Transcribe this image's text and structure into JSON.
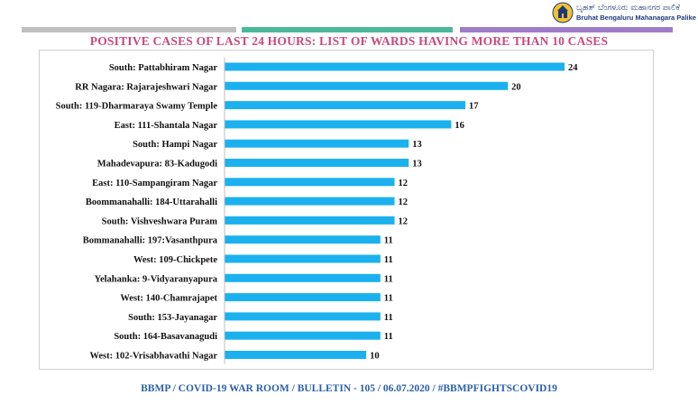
{
  "logo": {
    "kannada_text": "ಬೃಹತ್ ಬೆಂಗಳೂರು ಮಹಾನಗರ ಪಾಲಿಕೆ",
    "english_text": "Bruhat Bengaluru Mahanagara Palike"
  },
  "footer": "BBMP / COVID-19 WAR ROOM / BULLETIN - 105 / 06.07.2020 / #BBMPFIGHTSCOVID19",
  "colors": {
    "bar": "#1ab1ee",
    "title": "#c8497e",
    "footer": "#2a5fa8"
  },
  "chart_data": {
    "type": "bar",
    "orientation": "horizontal",
    "title": "POSITIVE CASES OF LAST 24 HOURS: LIST OF WARDS HAVING MORE THAN 10 CASES",
    "xlabel": "",
    "ylabel": "",
    "xlim": [
      0,
      24
    ],
    "grid": false,
    "legend": "none",
    "categories": [
      "South: Pattabhiram Nagar",
      "RR Nagara: Rajarajeshwari Nagar",
      "South: 119-Dharmaraya Swamy Temple",
      "East: 111-Shantala Nagar",
      "South: Hampi Nagar",
      "Mahadevapura: 83-Kadugodi",
      "East: 110-Sampangiram Nagar",
      "Boommanahalli: 184-Uttarahalli",
      "South: Vishveshwara Puram",
      "Bommanahalli: 197:Vasanthpura",
      "West: 109-Chickpete",
      "Yelahanka: 9-Vidyaranyapura",
      "West: 140-Chamrajapet",
      "South: 153-Jayanagar",
      "South: 164-Basavanagudi",
      "West: 102-Vrisabhavathi Nagar"
    ],
    "values": [
      24,
      20,
      17,
      16,
      13,
      13,
      12,
      12,
      12,
      11,
      11,
      11,
      11,
      11,
      11,
      10
    ]
  }
}
